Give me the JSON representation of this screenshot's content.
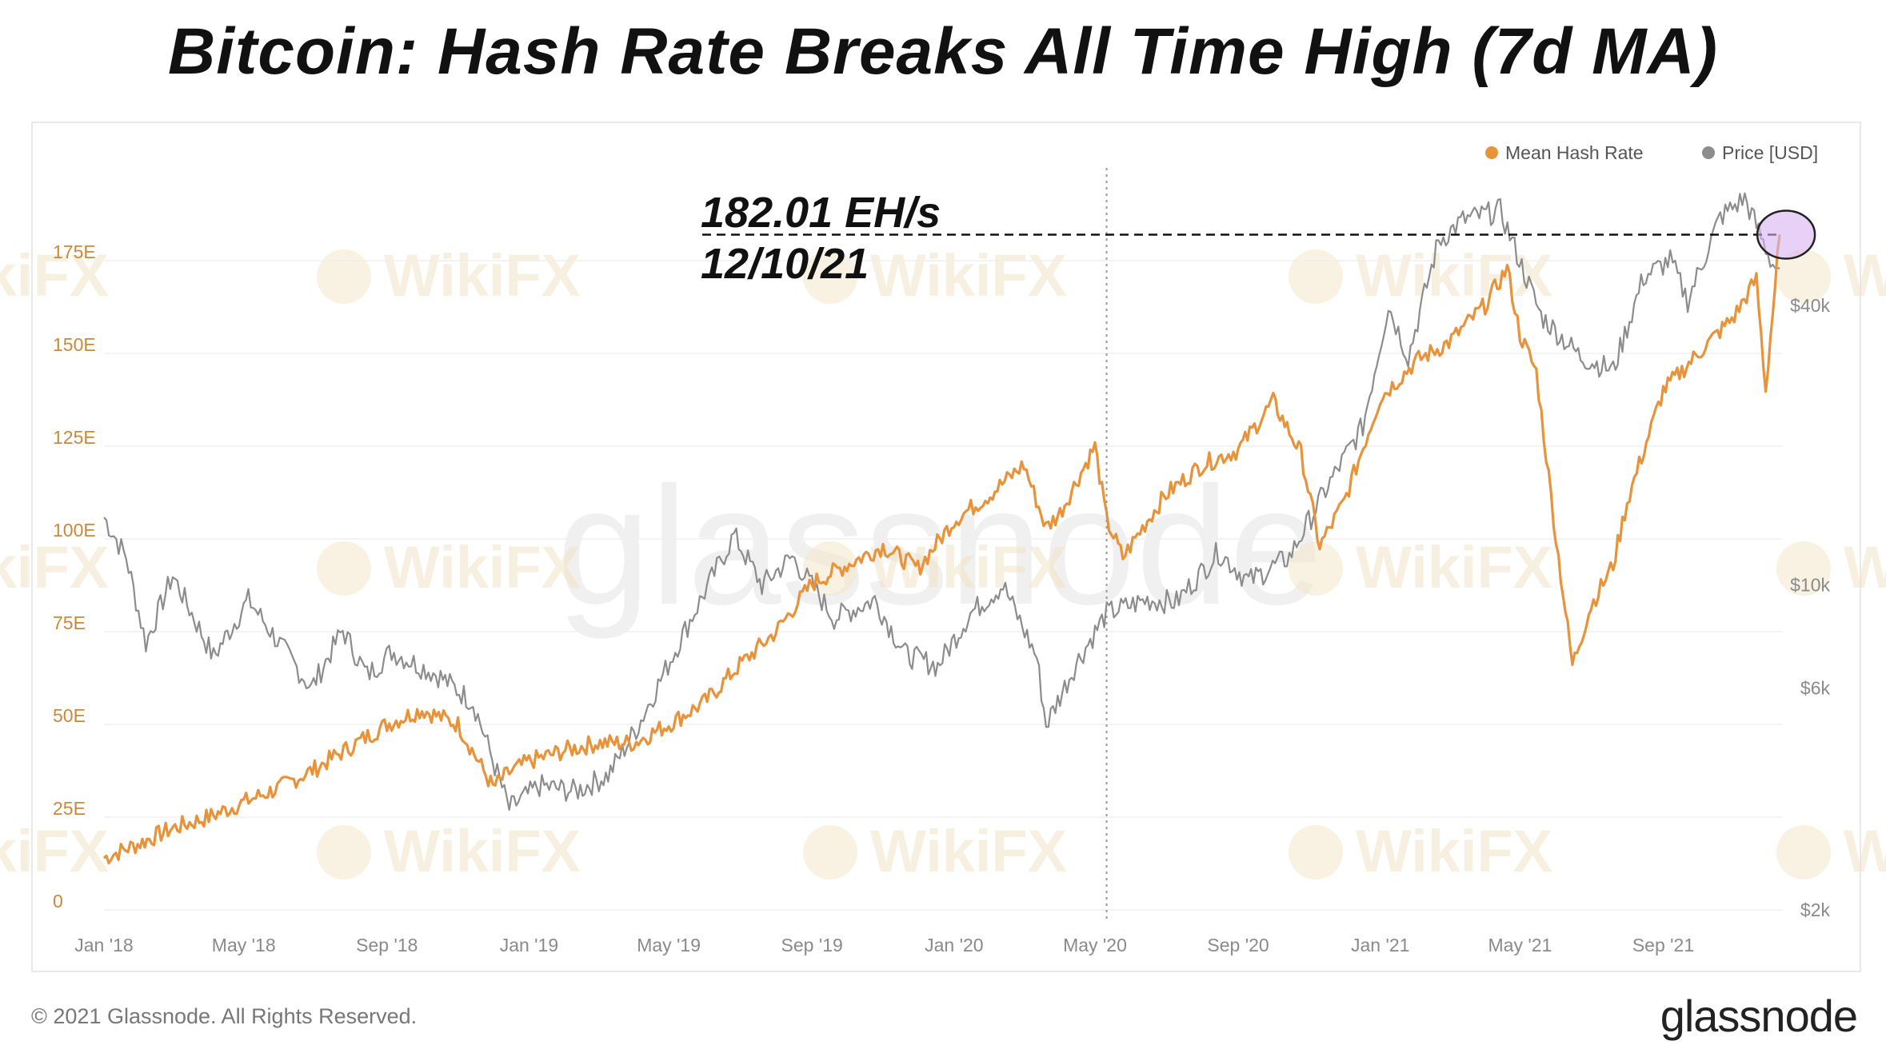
{
  "title": "Bitcoin: Hash Rate Breaks All Time High (7d MA)",
  "footer": {
    "copyright": "© 2021 Glassnode. All Rights Reserved.",
    "logo": "glassnode"
  },
  "watermark": {
    "center": "glassnode",
    "tile": "WikiFX"
  },
  "annotation": {
    "value": "182.01 EH/s",
    "date": "12/10/21",
    "ath_value": 182.01,
    "ath_date": "2021-12-10",
    "marker_date": "2020-05-11"
  },
  "colors": {
    "hash": "#e8933a",
    "price": "#8c8c8c",
    "highlight": "#d9b3f0"
  },
  "chart_data": {
    "type": "line",
    "title": "Bitcoin: Hash Rate Breaks All Time High (7d MA)",
    "legend": {
      "position": "top-right",
      "entries": [
        "Mean Hash Rate",
        "Price [USD]"
      ]
    },
    "x_ticks": [
      "Jan '18",
      "May '18",
      "Sep '18",
      "Jan '19",
      "May '19",
      "Sep '19",
      "Jan '20",
      "May '20",
      "Sep '20",
      "Jan '21",
      "May '21",
      "Sep '21"
    ],
    "x_range": [
      "2018-01-01",
      "2021-12-12"
    ],
    "y_left": {
      "label": "",
      "ticks": [
        "0",
        "25E",
        "50E",
        "75E",
        "100E",
        "125E",
        "150E",
        "175E"
      ],
      "range": [
        0,
        200
      ],
      "unit": "EH/s"
    },
    "y_right": {
      "label": "",
      "scale": "log",
      "ticks": [
        "$2k",
        "$6k",
        "$10k",
        "$40k"
      ],
      "tick_values": [
        2000,
        6000,
        10000,
        40000
      ],
      "range": [
        2000,
        79000
      ]
    },
    "grid": true,
    "series": [
      {
        "name": "Mean Hash Rate",
        "axis": "left",
        "x": [
          "2018-01-01",
          "2018-02-01",
          "2018-03-01",
          "2018-04-01",
          "2018-05-01",
          "2018-06-01",
          "2018-07-01",
          "2018-08-01",
          "2018-09-01",
          "2018-10-01",
          "2018-11-01",
          "2018-11-15",
          "2018-12-01",
          "2018-12-15",
          "2019-01-01",
          "2019-02-01",
          "2019-03-01",
          "2019-04-01",
          "2019-05-01",
          "2019-06-01",
          "2019-07-01",
          "2019-08-01",
          "2019-09-01",
          "2019-10-01",
          "2019-11-01",
          "2019-12-01",
          "2020-01-01",
          "2020-02-01",
          "2020-03-01",
          "2020-03-20",
          "2020-04-01",
          "2020-05-01",
          "2020-05-11",
          "2020-05-25",
          "2020-06-15",
          "2020-07-01",
          "2020-08-01",
          "2020-09-01",
          "2020-10-01",
          "2020-10-25",
          "2020-11-10",
          "2020-12-01",
          "2021-01-01",
          "2021-02-01",
          "2021-03-01",
          "2021-04-01",
          "2021-04-20",
          "2021-05-01",
          "2021-05-15",
          "2021-06-01",
          "2021-06-15",
          "2021-07-01",
          "2021-07-20",
          "2021-08-01",
          "2021-09-01",
          "2021-10-01",
          "2021-11-01",
          "2021-11-20",
          "2021-11-28",
          "2021-12-10"
        ],
        "values": [
          14,
          18,
          22,
          25,
          29,
          33,
          38,
          44,
          50,
          54,
          50,
          42,
          33,
          37,
          40,
          43,
          45,
          45,
          50,
          56,
          66,
          75,
          88,
          93,
          98,
          92,
          105,
          112,
          120,
          103,
          107,
          125,
          105,
          95,
          105,
          112,
          120,
          124,
          137,
          123,
          98,
          110,
          138,
          148,
          153,
          163,
          173,
          155,
          145,
          100,
          66,
          82,
          93,
          110,
          140,
          150,
          160,
          170,
          140,
          182.01
        ]
      },
      {
        "name": "Price [USD]",
        "axis": "right",
        "x": [
          "2018-01-01",
          "2018-01-20",
          "2018-02-06",
          "2018-03-01",
          "2018-04-05",
          "2018-05-05",
          "2018-06-28",
          "2018-07-25",
          "2018-08-15",
          "2018-09-05",
          "2018-10-15",
          "2018-11-14",
          "2018-12-15",
          "2019-01-10",
          "2019-02-10",
          "2019-03-10",
          "2019-04-05",
          "2019-05-15",
          "2019-06-26",
          "2019-07-20",
          "2019-08-15",
          "2019-09-20",
          "2019-10-25",
          "2019-11-20",
          "2019-12-18",
          "2020-01-15",
          "2020-02-12",
          "2020-03-12",
          "2020-03-20",
          "2020-04-15",
          "2020-05-11",
          "2020-06-15",
          "2020-07-10",
          "2020-08-15",
          "2020-09-10",
          "2020-10-15",
          "2020-11-15",
          "2020-12-17",
          "2021-01-08",
          "2021-01-25",
          "2021-02-20",
          "2021-03-13",
          "2021-04-14",
          "2021-05-19",
          "2021-06-22",
          "2021-07-20",
          "2021-08-15",
          "2021-09-07",
          "2021-09-22",
          "2021-10-20",
          "2021-11-10",
          "2021-12-04",
          "2021-12-10"
        ],
        "values": [
          14000,
          11500,
          7500,
          10500,
          7000,
          9300,
          6000,
          8000,
          6400,
          7200,
          6400,
          5600,
          3300,
          3700,
          3600,
          3900,
          5000,
          8000,
          12800,
          10000,
          11500,
          8500,
          9300,
          7100,
          6700,
          8700,
          10000,
          7000,
          5000,
          6800,
          8700,
          9300,
          9200,
          11800,
          10200,
          11500,
          16000,
          22000,
          40000,
          31000,
          55000,
          61000,
          64000,
          38000,
          31000,
          29000,
          46000,
          50000,
          41000,
          62000,
          68000,
          49000,
          48000
        ]
      }
    ]
  }
}
